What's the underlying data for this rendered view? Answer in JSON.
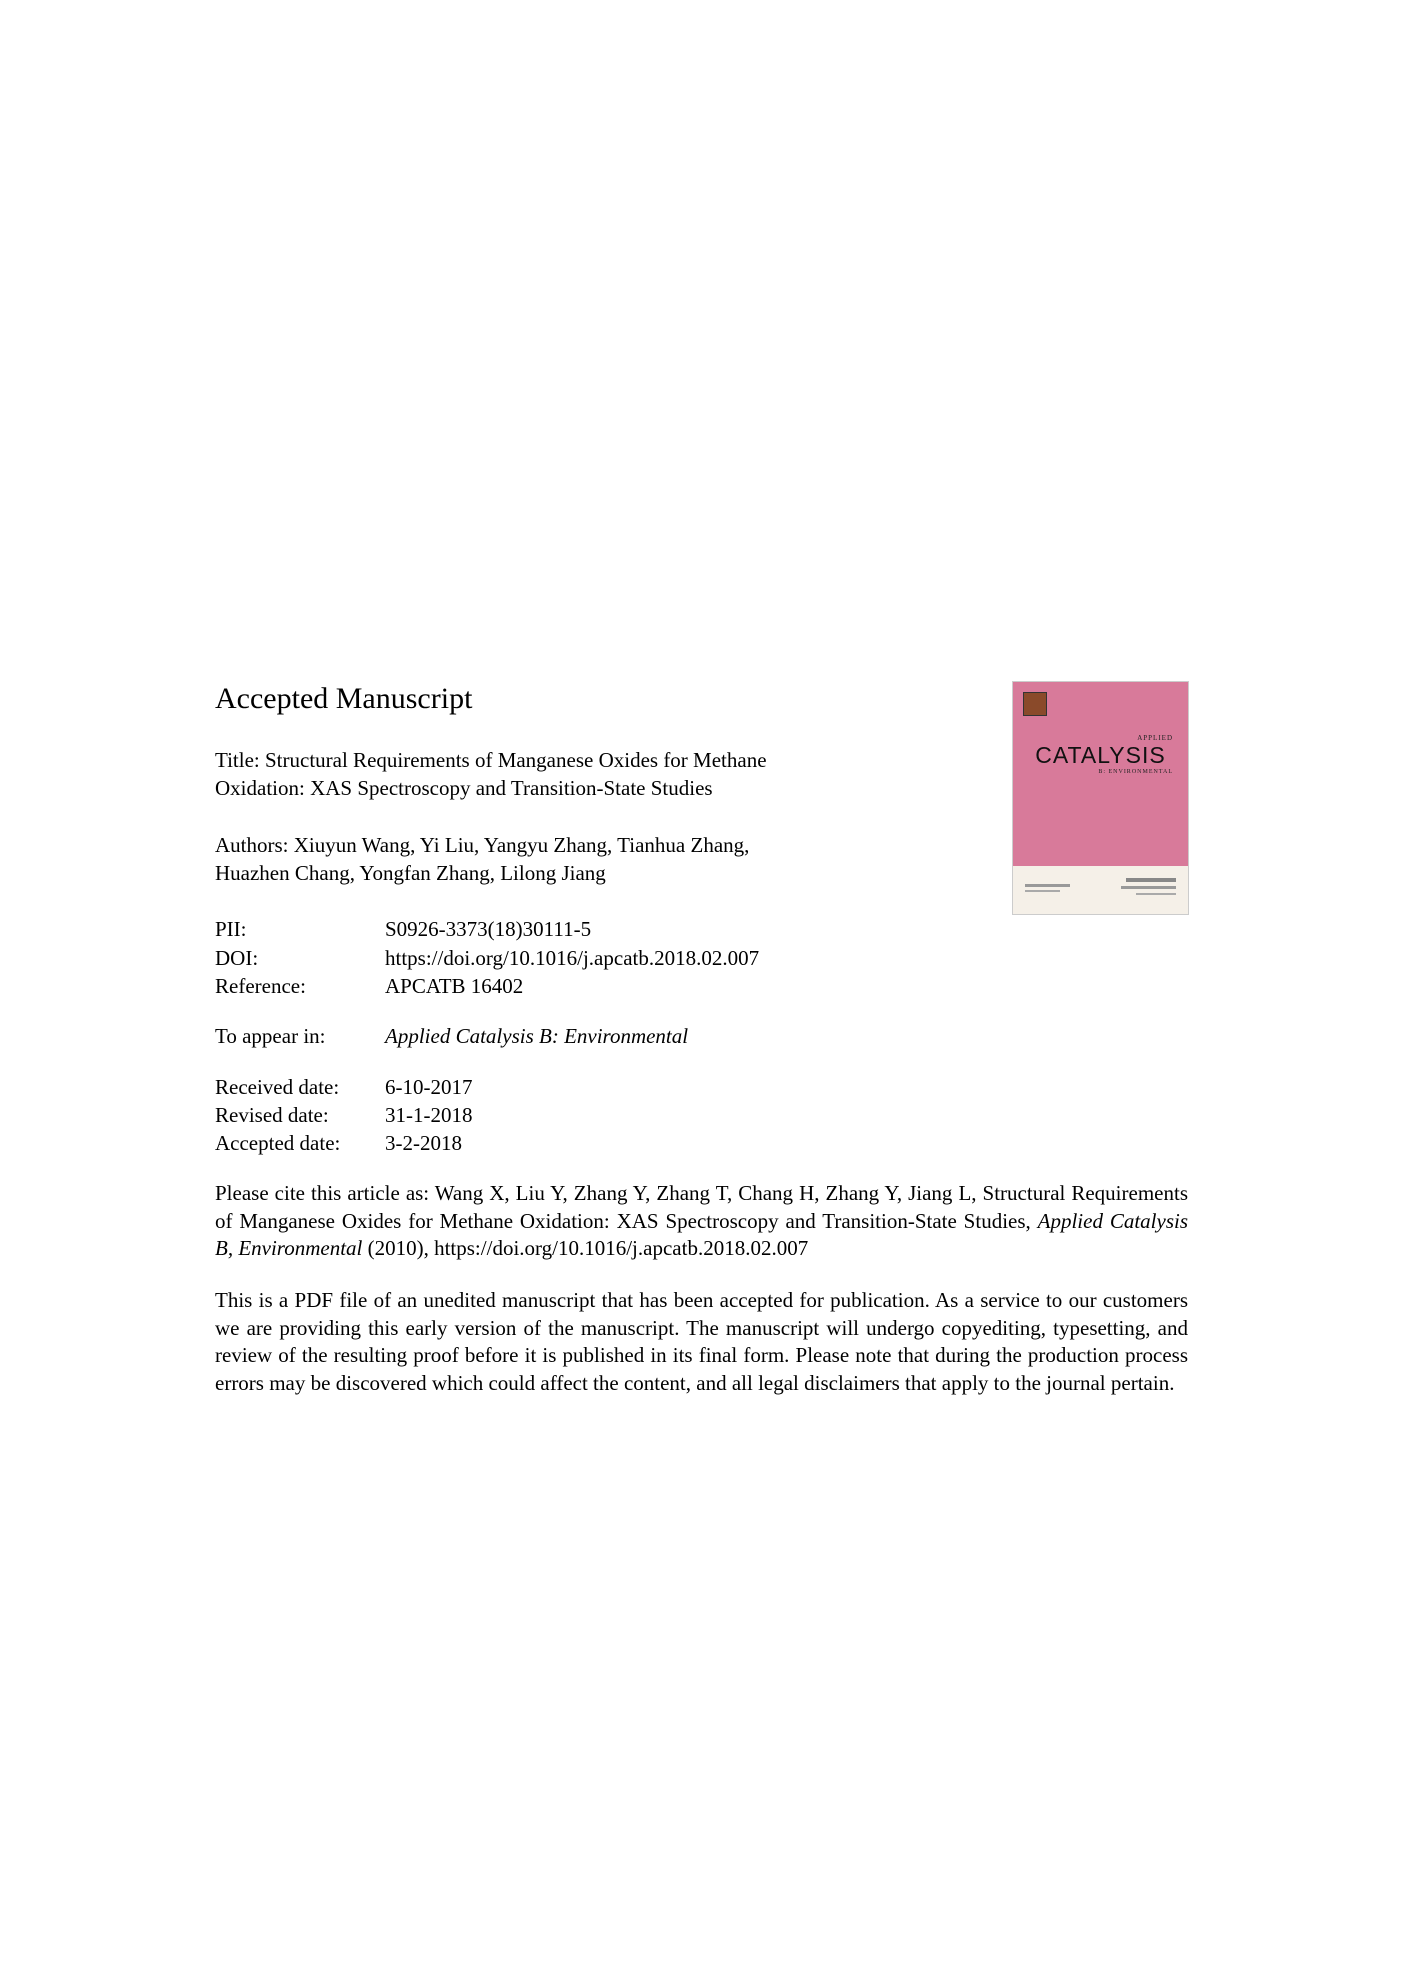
{
  "heading": "Accepted Manuscript",
  "title_prefix": "Title: ",
  "title_text": "Structural Requirements of Manganese Oxides for Methane Oxidation: XAS Spectroscopy and Transition-State Studies",
  "authors_prefix": "Authors: ",
  "authors_text": "Xiuyun Wang, Yi Liu, Yangyu Zhang, Tianhua Zhang, Huazhen Chang, Yongfan Zhang, Lilong Jiang",
  "meta": {
    "pii_label": "PII:",
    "pii_value": "S0926-3373(18)30111-5",
    "doi_label": "DOI:",
    "doi_value": "https://doi.org/10.1016/j.apcatb.2018.02.007",
    "ref_label": "Reference:",
    "ref_value": "APCATB 16402",
    "appear_label": "To appear in:",
    "appear_value": "Applied Catalysis B: Environmental",
    "received_label": "Received date:",
    "received_value": "6-10-2017",
    "revised_label": "Revised date:",
    "revised_value": "31-1-2018",
    "accepted_label": "Accepted date:",
    "accepted_value": "3-2-2018"
  },
  "cite": {
    "pre": "Please cite this article as: Wang X, Liu Y, Zhang Y, Zhang T, Chang H, Zhang Y, Jiang L, Structural Requirements of Manganese Oxides for Methane Oxidation: XAS Spectroscopy and Transition-State Studies, ",
    "journal": "Applied Catalysis B, Environmental",
    "post": " (2010), https://doi.org/10.1016/j.apcatb.2018.02.007"
  },
  "disclaimer": "This is a PDF file of an unedited manuscript that has been accepted for publication. As a service to our customers we are providing this early version of the manuscript. The manuscript will undergo copyediting, typesetting, and review of the resulting proof before it is published in its final form. Please note that during the production process errors may be discovered which could affect the content, and all legal disclaimers that apply to the journal pertain.",
  "cover": {
    "applied_text": "APPLIED",
    "catalysis_text": "CATALYSIS",
    "b_text": "B: ENVIRONMENTAL"
  }
}
